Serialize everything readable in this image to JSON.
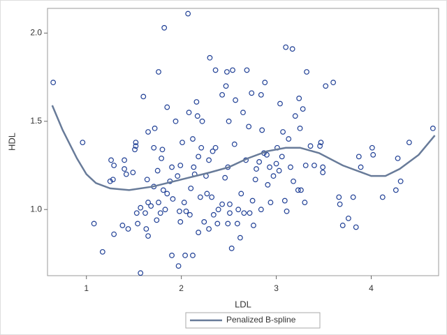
{
  "chart_data": {
    "type": "scatter",
    "x_label": "LDL",
    "y_label": "HDL",
    "xlim": [
      0.59,
      4.71
    ],
    "ylim": [
      0.625,
      2.14
    ],
    "xticks": [
      1,
      2,
      3,
      4
    ],
    "yticks": [
      {
        "value": 1,
        "label": "1.0"
      },
      1.5,
      {
        "value": 2,
        "label": "2.0"
      }
    ],
    "legend": "bottom",
    "series": [
      {
        "type": "scatter",
        "color": "#1f3f95",
        "x": [
          0.65,
          0.96,
          1.08,
          1.17,
          1.26,
          1.28,
          1.25,
          1.29,
          1.29,
          1.38,
          1.4,
          1.4,
          1.42,
          1.44,
          1.49,
          1.51,
          1.52,
          1.52,
          1.54,
          1.53,
          1.57,
          1.57,
          1.6,
          1.62,
          1.63,
          1.64,
          1.65,
          1.65,
          1.65,
          1.68,
          1.71,
          1.72,
          1.71,
          1.74,
          1.75,
          1.76,
          1.76,
          1.78,
          1.79,
          1.8,
          1.81,
          1.82,
          1.83,
          1.85,
          1.85,
          1.88,
          1.9,
          1.9,
          1.91,
          1.94,
          1.96,
          1.97,
          1.98,
          1.99,
          1.99,
          2.01,
          2.03,
          2.04,
          2.05,
          2.07,
          2.08,
          2.09,
          2.1,
          2.12,
          2.12,
          2.13,
          2.14,
          2.16,
          2.17,
          2.18,
          2.18,
          2.2,
          2.21,
          2.22,
          2.24,
          2.26,
          2.27,
          2.29,
          2.29,
          2.3,
          2.32,
          2.33,
          2.34,
          2.36,
          2.36,
          2.38,
          2.39,
          2.43,
          2.43,
          2.46,
          2.47,
          2.48,
          2.49,
          2.49,
          2.5,
          2.51,
          2.51,
          2.53,
          2.54,
          2.56,
          2.57,
          2.59,
          2.6,
          2.62,
          2.63,
          2.65,
          2.66,
          2.68,
          2.69,
          2.71,
          2.72,
          2.74,
          2.75,
          2.76,
          2.78,
          2.79,
          2.82,
          2.84,
          2.84,
          2.85,
          2.87,
          2.88,
          2.9,
          2.91,
          2.93,
          2.94,
          2.97,
          3.0,
          3.01,
          3.03,
          3.04,
          3.06,
          3.07,
          3.09,
          3.1,
          3.11,
          3.13,
          3.15,
          3.17,
          3.18,
          3.2,
          3.23,
          3.24,
          3.25,
          3.26,
          3.28,
          3.3,
          3.31,
          3.32,
          3.36,
          3.4,
          3.46,
          3.47,
          3.49,
          3.49,
          3.52,
          3.6,
          3.66,
          3.67,
          3.7,
          3.76,
          3.81,
          3.84,
          3.87,
          3.89,
          4.01,
          4.02,
          4.12,
          4.26,
          4.28,
          4.31,
          4.4,
          4.65
        ],
        "values": [
          1.72,
          1.38,
          0.92,
          0.76,
          1.28,
          1.17,
          1.16,
          1.25,
          0.86,
          0.91,
          1.23,
          1.28,
          1.2,
          0.89,
          1.21,
          1.34,
          1.36,
          1.38,
          0.92,
          0.98,
          1.01,
          0.64,
          1.64,
          0.98,
          0.89,
          1.17,
          1.04,
          1.44,
          0.85,
          1.02,
          1.35,
          1.46,
          1.13,
          0.94,
          1.22,
          1.78,
          1.04,
          0.98,
          1.29,
          1.34,
          1.11,
          2.03,
          1.0,
          1.58,
          1.09,
          1.16,
          1.24,
          0.74,
          1.06,
          1.5,
          1.19,
          0.68,
          0.99,
          1.25,
          0.93,
          1.38,
          1.04,
          0.74,
          0.99,
          2.11,
          1.55,
          0.97,
          1.12,
          0.74,
          1.4,
          1.24,
          1.2,
          1.61,
          1.53,
          1.3,
          0.87,
          1.07,
          1.35,
          1.5,
          0.93,
          1.19,
          1.09,
          1.28,
          0.89,
          1.86,
          1.07,
          1.33,
          0.97,
          1.79,
          1.35,
          0.92,
          1.0,
          1.65,
          1.03,
          1.18,
          1.7,
          1.78,
          1.24,
          0.92,
          1.5,
          1.03,
          0.98,
          0.78,
          1.79,
          1.37,
          1.62,
          0.92,
          1.0,
          0.84,
          1.09,
          1.55,
          0.98,
          1.28,
          1.79,
          1.47,
          0.98,
          1.66,
          1.05,
          0.91,
          1.17,
          1.23,
          1.27,
          1.65,
          1.0,
          1.45,
          1.32,
          1.72,
          1.31,
          1.14,
          1.24,
          1.04,
          1.19,
          1.26,
          1.35,
          1.22,
          1.6,
          1.3,
          1.44,
          1.05,
          1.92,
          0.99,
          1.4,
          1.24,
          1.91,
          1.16,
          1.53,
          1.11,
          1.63,
          1.46,
          1.11,
          1.57,
          1.04,
          1.25,
          1.78,
          1.36,
          1.25,
          1.36,
          1.38,
          1.21,
          1.24,
          1.7,
          1.72,
          1.07,
          1.03,
          0.91,
          0.95,
          1.07,
          0.9,
          1.3,
          1.24,
          1.35,
          1.31,
          1.07,
          1.11,
          1.29,
          1.16,
          1.38,
          1.46
        ]
      },
      {
        "type": "line",
        "name": "Penalized B-spline",
        "color": "#687b99",
        "x": [
          0.64,
          0.75,
          0.9,
          1.0,
          1.1,
          1.25,
          1.45,
          1.7,
          2.0,
          2.3,
          2.5,
          2.7,
          2.9,
          3.1,
          3.25,
          3.45,
          3.7,
          3.9,
          4.0,
          4.15,
          4.3,
          4.5,
          4.67
        ],
        "values": [
          1.59,
          1.45,
          1.29,
          1.2,
          1.15,
          1.12,
          1.11,
          1.13,
          1.17,
          1.21,
          1.24,
          1.29,
          1.33,
          1.35,
          1.35,
          1.32,
          1.25,
          1.21,
          1.19,
          1.19,
          1.23,
          1.31,
          1.42
        ]
      }
    ]
  }
}
